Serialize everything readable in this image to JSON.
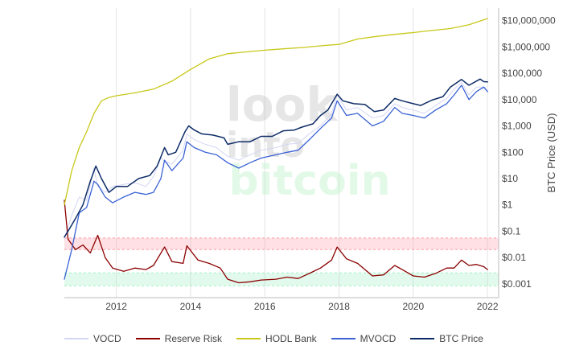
{
  "chart_data": {
    "type": "line",
    "ylabel": "BTC Price (USD)",
    "watermark": [
      "look",
      "into",
      "bitcoin"
    ],
    "x_ticks": [
      "2012",
      "2014",
      "2016",
      "2018",
      "2020",
      "2022"
    ],
    "xlim": [
      2010.6,
      2022.3
    ],
    "y_scale": "log",
    "ylim": [
      0.0003,
      30000000
    ],
    "y_ticks": [
      {
        "value": 10000000,
        "label": "$10,000,000"
      },
      {
        "value": 1000000,
        "label": "$1,000,000"
      },
      {
        "value": 100000,
        "label": "$100,000"
      },
      {
        "value": 10000,
        "label": "$10,000"
      },
      {
        "value": 1000,
        "label": "$1,000"
      },
      {
        "value": 100,
        "label": "$100"
      },
      {
        "value": 10,
        "label": "$10"
      },
      {
        "value": 1,
        "label": "$1"
      },
      {
        "value": 0.1,
        "label": "$0.1"
      },
      {
        "value": 0.01,
        "label": "$0.01"
      },
      {
        "value": 0.001,
        "label": "$0.001"
      }
    ],
    "bands": [
      {
        "from": 0.02,
        "to": 0.055,
        "color": "#ff9aa8"
      },
      {
        "from": 0.00085,
        "to": 0.0026,
        "color": "#9ff0c5"
      }
    ],
    "grid": true,
    "legend_position": "bottom",
    "series": [
      {
        "name": "VOCD",
        "color": "#d3d6f5",
        "width": 1,
        "x": [
          2010.6,
          2010.8,
          2011.0,
          2011.2,
          2011.4,
          2011.5,
          2011.7,
          2011.9,
          2012.2,
          2012.5,
          2012.8,
          2013.0,
          2013.2,
          2013.3,
          2013.5,
          2013.8,
          2013.9,
          2014.1,
          2014.4,
          2014.7,
          2015.0,
          2015.3,
          2015.6,
          2015.9,
          2016.3,
          2016.6,
          2016.9,
          2017.2,
          2017.5,
          2017.8,
          2017.95,
          2018.2,
          2018.5,
          2018.9,
          2019.2,
          2019.5,
          2019.7,
          2020.0,
          2020.3,
          2020.6,
          2020.9,
          2021.1,
          2021.3,
          2021.5,
          2021.7,
          2021.9,
          2022.0
        ],
        "y": [
          0.05,
          0.4,
          2,
          1.5,
          25,
          5,
          3,
          5,
          6,
          7,
          5,
          12,
          60,
          45,
          35,
          120,
          500,
          300,
          200,
          150,
          70,
          50,
          80,
          120,
          150,
          200,
          220,
          500,
          1000,
          3000,
          15000,
          4000,
          5000,
          2000,
          2500,
          7000,
          5000,
          4000,
          3000,
          6000,
          11000,
          25000,
          45000,
          15000,
          30000,
          30000,
          20000
        ]
      },
      {
        "name": "Reserve Risk",
        "color": "#8b0000",
        "width": 1.3,
        "x": [
          2010.6,
          2010.7,
          2010.9,
          2011.1,
          2011.3,
          2011.5,
          2011.7,
          2011.9,
          2012.2,
          2012.5,
          2012.8,
          2013.0,
          2013.3,
          2013.5,
          2013.8,
          2013.9,
          2014.2,
          2014.5,
          2014.8,
          2015.0,
          2015.3,
          2015.6,
          2015.9,
          2016.3,
          2016.6,
          2016.9,
          2017.2,
          2017.5,
          2017.8,
          2017.95,
          2018.2,
          2018.5,
          2018.9,
          2019.2,
          2019.5,
          2019.7,
          2020.0,
          2020.3,
          2020.6,
          2020.9,
          2021.1,
          2021.3,
          2021.5,
          2021.7,
          2021.9,
          2022.0
        ],
        "y": [
          1.5,
          0.05,
          0.02,
          0.03,
          0.015,
          0.07,
          0.01,
          0.004,
          0.003,
          0.004,
          0.0035,
          0.005,
          0.025,
          0.007,
          0.006,
          0.028,
          0.008,
          0.006,
          0.004,
          0.0015,
          0.0011,
          0.0012,
          0.0014,
          0.0015,
          0.0018,
          0.0016,
          0.0025,
          0.004,
          0.008,
          0.025,
          0.009,
          0.006,
          0.002,
          0.0022,
          0.005,
          0.0035,
          0.002,
          0.0018,
          0.0025,
          0.004,
          0.004,
          0.008,
          0.005,
          0.0055,
          0.0045,
          0.0035
        ]
      },
      {
        "name": "HODL Bank",
        "color": "#c8c81a",
        "width": 1.3,
        "x": [
          2010.6,
          2010.8,
          2011.0,
          2011.2,
          2011.4,
          2011.6,
          2011.8,
          2012.0,
          2012.5,
          2013.0,
          2013.5,
          2014.0,
          2014.5,
          2015.0,
          2015.5,
          2016.0,
          2016.5,
          2017.0,
          2017.5,
          2017.8,
          2018.0,
          2018.5,
          2019.0,
          2019.5,
          2020.0,
          2020.5,
          2021.0,
          2021.5,
          2022.0
        ],
        "y": [
          1,
          20,
          150,
          600,
          3000,
          9000,
          12000,
          14000,
          18000,
          25000,
          50000,
          140000,
          350000,
          550000,
          650000,
          750000,
          850000,
          950000,
          1100000,
          1200000,
          1250000,
          2000000,
          2500000,
          3000000,
          3500000,
          4200000,
          5000000,
          7000000,
          12000000
        ]
      },
      {
        "name": "MVOCD",
        "color": "#3a62d4",
        "width": 1.3,
        "x": [
          2010.6,
          2010.8,
          2011.0,
          2011.2,
          2011.4,
          2011.5,
          2011.7,
          2011.9,
          2012.2,
          2012.5,
          2012.8,
          2013.0,
          2013.2,
          2013.3,
          2013.5,
          2013.8,
          2013.9,
          2014.1,
          2014.4,
          2014.7,
          2015.0,
          2015.3,
          2015.6,
          2015.9,
          2016.3,
          2016.6,
          2016.9,
          2017.2,
          2017.5,
          2017.8,
          2017.95,
          2018.2,
          2018.5,
          2018.9,
          2019.2,
          2019.5,
          2019.7,
          2020.0,
          2020.3,
          2020.6,
          2020.9,
          2021.1,
          2021.3,
          2021.5,
          2021.7,
          2021.9,
          2022.0
        ],
        "y": [
          0.0015,
          0.02,
          0.5,
          0.8,
          8,
          6,
          2,
          1.2,
          2,
          3,
          2.5,
          3,
          10,
          50,
          20,
          60,
          250,
          150,
          100,
          80,
          40,
          25,
          40,
          60,
          80,
          100,
          120,
          300,
          800,
          2000,
          9000,
          2500,
          3000,
          1000,
          1500,
          5000,
          3000,
          2500,
          2000,
          4000,
          7000,
          15000,
          35000,
          10000,
          20000,
          30000,
          20000
        ]
      },
      {
        "name": "BTC Price",
        "color": "#0d2b66",
        "width": 1.5,
        "x": [
          2010.6,
          2010.7,
          2010.9,
          2011.1,
          2011.3,
          2011.45,
          2011.6,
          2011.8,
          2012.0,
          2012.3,
          2012.6,
          2012.9,
          2013.1,
          2013.3,
          2013.4,
          2013.6,
          2013.85,
          2013.95,
          2014.1,
          2014.3,
          2014.6,
          2014.9,
          2015.0,
          2015.3,
          2015.6,
          2015.9,
          2016.2,
          2016.5,
          2016.8,
          2017.0,
          2017.3,
          2017.5,
          2017.7,
          2017.95,
          2018.1,
          2018.4,
          2018.7,
          2018.95,
          2019.2,
          2019.5,
          2019.7,
          2020.0,
          2020.2,
          2020.5,
          2020.8,
          2021.0,
          2021.3,
          2021.5,
          2021.8,
          2021.9,
          2022.0
        ],
        "y": [
          0.06,
          0.1,
          0.3,
          1,
          8,
          30,
          10,
          3,
          5,
          5,
          10,
          13,
          30,
          150,
          80,
          100,
          600,
          1000,
          700,
          500,
          450,
          350,
          200,
          250,
          250,
          400,
          400,
          650,
          700,
          900,
          1200,
          2500,
          4000,
          16000,
          9000,
          7000,
          6500,
          3500,
          4000,
          11000,
          9000,
          7000,
          6000,
          9500,
          13000,
          30000,
          58000,
          35000,
          60000,
          48000,
          47000
        ]
      }
    ]
  },
  "legend": [
    {
      "label": "VOCD",
      "color": "#d3d6f5"
    },
    {
      "label": "Reserve Risk",
      "color": "#8b0000"
    },
    {
      "label": "HODL Bank",
      "color": "#c8c81a"
    },
    {
      "label": "MVOCD",
      "color": "#3a62d4"
    },
    {
      "label": "BTC Price",
      "color": "#0d2b66"
    }
  ]
}
